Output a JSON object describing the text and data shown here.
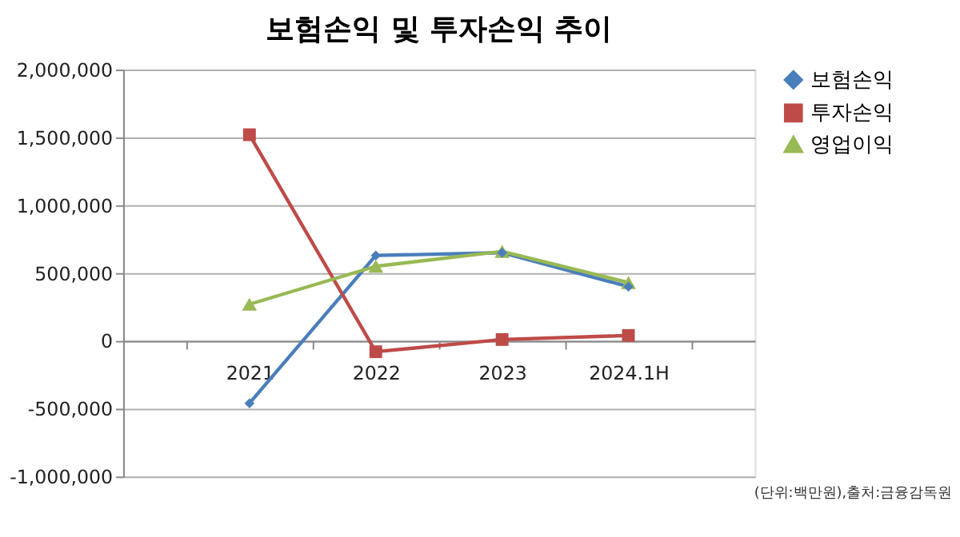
{
  "chart_data": {
    "type": "line",
    "title": "보험손익 및 투자손익 추이",
    "categories": [
      "2021",
      "2022",
      "2023",
      "2024.1H"
    ],
    "series": [
      {
        "name": "보험손익",
        "color": "#4a7ebb",
        "marker": "diamond",
        "values": [
          -460000,
          630000,
          650000,
          400000
        ]
      },
      {
        "name": "투자손익",
        "color": "#be4b48",
        "marker": "square",
        "values": [
          1520000,
          -80000,
          10000,
          40000
        ]
      },
      {
        "name": "영업이익",
        "color": "#98b954",
        "marker": "triangle",
        "values": [
          270000,
          550000,
          660000,
          430000
        ]
      }
    ],
    "ylim": [
      -1000000,
      2000000
    ],
    "yticks": [
      {
        "value": -1000000,
        "label": "-1,000,000"
      },
      {
        "value": -500000,
        "label": "-500,000"
      },
      0,
      {
        "value": 500000,
        "label": "500,000"
      },
      {
        "value": 1000000,
        "label": "1,000,000"
      },
      {
        "value": 1500000,
        "label": "1,500,000"
      },
      {
        "value": 2000000,
        "label": "2,000,000"
      }
    ],
    "grid": "y",
    "legend": "right",
    "line_style": "solid",
    "annotations": [
      "(단위:백만원),출처:금융감독원"
    ]
  }
}
